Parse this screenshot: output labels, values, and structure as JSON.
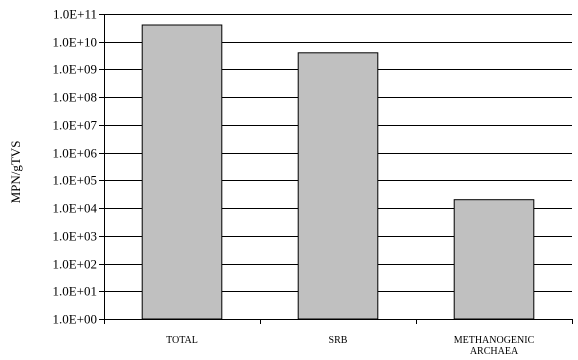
{
  "chart_data": {
    "type": "bar",
    "scale": "log10",
    "ylabel": "MPN/gTVS",
    "ylim": [
      1,
      100000000000
    ],
    "y_ticks": [
      {
        "value": 1,
        "label": "1.0E+00"
      },
      {
        "value": 10,
        "label": "1.0E+01"
      },
      {
        "value": 100,
        "label": "1.0E+02"
      },
      {
        "value": 1000,
        "label": "1.0E+03"
      },
      {
        "value": 10000,
        "label": "1.0E+04"
      },
      {
        "value": 100000,
        "label": "1.0E+05"
      },
      {
        "value": 1000000,
        "label": "1.0E+06"
      },
      {
        "value": 10000000,
        "label": "1.0E+07"
      },
      {
        "value": 100000000,
        "label": "1.0E+08"
      },
      {
        "value": 1000000000,
        "label": "1.0E+09"
      },
      {
        "value": 10000000000,
        "label": "1.0E+10"
      },
      {
        "value": 100000000000,
        "label": "1.0E+11"
      }
    ],
    "categories": [
      {
        "lines": [
          "TOTAL"
        ]
      },
      {
        "lines": [
          "SRB"
        ]
      },
      {
        "lines": [
          "METHANOGENIC",
          "ARCHAEA"
        ]
      }
    ],
    "values": [
      40000000000,
      4000000000,
      20000
    ],
    "grid": true,
    "colors": {
      "bar_fill": "#c0c0c0",
      "bar_stroke": "#000000",
      "grid": "#000000"
    }
  }
}
